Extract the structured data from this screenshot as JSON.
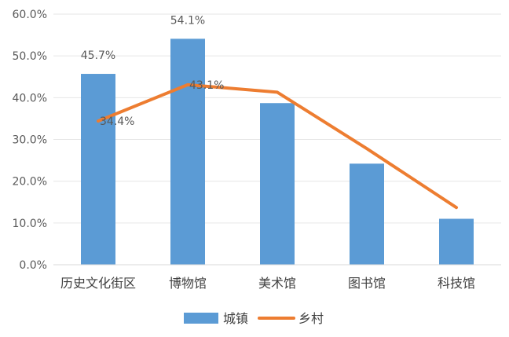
{
  "chart_data": {
    "type": "bar",
    "categories": [
      "历史文化街区",
      "博物馆",
      "美术馆",
      "图书馆",
      "科技馆"
    ],
    "series": [
      {
        "name": "城镇",
        "type": "bar",
        "values": [
          45.7,
          54.1,
          38.7,
          24.2,
          11.0
        ],
        "labels": [
          "45.7%",
          "54.1%",
          null,
          null,
          null
        ],
        "color": "#5b9bd5"
      },
      {
        "name": "乡村",
        "type": "line",
        "values": [
          34.4,
          43.1,
          41.3,
          27.8,
          13.7
        ],
        "labels": [
          "34.4%",
          "43.1%",
          null,
          null,
          null
        ],
        "color": "#ed7d31"
      }
    ],
    "ylim": [
      0,
      60
    ],
    "yticks": [
      "0.0%",
      "10.0%",
      "20.0%",
      "30.0%",
      "40.0%",
      "50.0%",
      "60.0%"
    ],
    "grid": true,
    "legend_position": "bottom"
  }
}
